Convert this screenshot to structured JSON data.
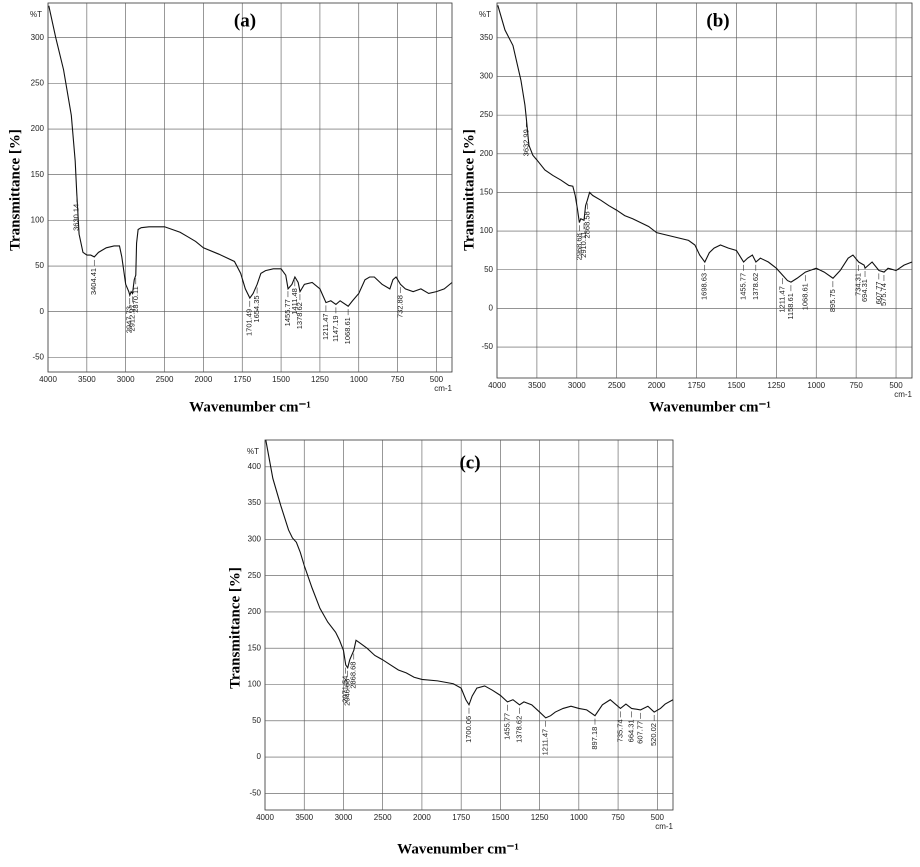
{
  "chart_data": [
    {
      "type": "line",
      "title": "(a)",
      "x_label": "Wavenumber cm⁻¹",
      "y_label": "Transmittance [%]",
      "y_unit": "%T",
      "x_unit": "cm-1",
      "xlim": [
        4000,
        400
      ],
      "ylim": [
        -66,
        338
      ],
      "xticks": [
        4000,
        3500,
        3000,
        2500,
        2000,
        1750,
        1500,
        1250,
        1000,
        750,
        500
      ],
      "yticks": [
        -50,
        0,
        50,
        100,
        150,
        200,
        250,
        300
      ],
      "grid": true,
      "color": "#111111",
      "x": [
        3990,
        3900,
        3800,
        3700,
        3650,
        3630,
        3600,
        3550,
        3500,
        3450,
        3404,
        3350,
        3250,
        3150,
        3080,
        3050,
        3000,
        2960,
        2947,
        2930,
        2912,
        2890,
        2870,
        2860,
        2840,
        2800,
        2700,
        2600,
        2500,
        2400,
        2300,
        2200,
        2100,
        2000,
        1900,
        1800,
        1760,
        1730,
        1701,
        1680,
        1654,
        1630,
        1600,
        1550,
        1500,
        1470,
        1455,
        1430,
        1411,
        1390,
        1378,
        1350,
        1300,
        1250,
        1211,
        1180,
        1147,
        1120,
        1068,
        1040,
        1000,
        960,
        930,
        900,
        850,
        800,
        780,
        760,
        732,
        700,
        650,
        600,
        550,
        500,
        450,
        400
      ],
      "values": [
        335,
        300,
        265,
        215,
        165,
        130,
        85,
        65,
        62,
        62,
        60,
        65,
        70,
        72,
        72,
        60,
        30,
        22,
        18,
        22,
        20,
        35,
        40,
        75,
        90,
        92,
        93,
        93,
        93,
        90,
        87,
        82,
        77,
        70,
        63,
        55,
        42,
        25,
        15,
        20,
        30,
        42,
        45,
        47,
        47,
        40,
        25,
        30,
        38,
        32,
        22,
        30,
        32,
        25,
        10,
        12,
        8,
        12,
        6,
        12,
        20,
        35,
        38,
        38,
        30,
        25,
        35,
        38,
        30,
        25,
        22,
        25,
        20,
        22,
        25,
        32
      ],
      "peaks": [
        3630.14,
        3404.41,
        2947.73,
        2912.97,
        2870.11,
        1701.49,
        1654.35,
        1455.77,
        1411.48,
        1378.62,
        1211.47,
        1147.19,
        1068.61,
        732.88
      ]
    },
    {
      "type": "line",
      "title": "(b)",
      "x_label": "Wavenumber cm⁻¹",
      "y_label": "Transmittance [%]",
      "y_unit": "%T",
      "x_unit": "cm-1",
      "xlim": [
        4000,
        400
      ],
      "ylim": [
        -90,
        395
      ],
      "xticks": [
        4000,
        3500,
        3000,
        2500,
        2000,
        1750,
        1500,
        1250,
        1000,
        750,
        500
      ],
      "yticks": [
        -50,
        0,
        50,
        100,
        150,
        200,
        250,
        300,
        350
      ],
      "grid": true,
      "color": "#111111",
      "x": [
        3990,
        3900,
        3800,
        3700,
        3650,
        3632,
        3600,
        3550,
        3500,
        3400,
        3300,
        3200,
        3100,
        3050,
        3020,
        2990,
        2968,
        2950,
        2910,
        2890,
        2868,
        2840,
        2800,
        2700,
        2600,
        2500,
        2400,
        2300,
        2200,
        2100,
        2000,
        1900,
        1800,
        1760,
        1730,
        1698,
        1670,
        1640,
        1600,
        1550,
        1500,
        1470,
        1455,
        1430,
        1400,
        1378,
        1350,
        1300,
        1250,
        1211,
        1180,
        1158,
        1120,
        1068,
        1040,
        1000,
        950,
        895,
        850,
        800,
        770,
        734,
        700,
        694,
        650,
        607,
        575,
        550,
        500,
        450,
        400
      ],
      "values": [
        392,
        360,
        340,
        295,
        263,
        245,
        211,
        198,
        192,
        179,
        172,
        166,
        159,
        158,
        146,
        127,
        111,
        116,
        114,
        133,
        140,
        150,
        146,
        140,
        133,
        127,
        120,
        116,
        111,
        106,
        98,
        93,
        88,
        82,
        69,
        60,
        72,
        78,
        82,
        78,
        75,
        65,
        60,
        65,
        69,
        60,
        65,
        60,
        52,
        43,
        36,
        34,
        39,
        47,
        49,
        52,
        47,
        39,
        49,
        65,
        69,
        60,
        56,
        52,
        60,
        49,
        47,
        52,
        49,
        56,
        60
      ],
      "peaks": [
        3632.99,
        2968.68,
        2910.11,
        2868.58,
        1698.63,
        1455.77,
        1378.62,
        1211.47,
        1158.61,
        1068.61,
        895.75,
        734.31,
        694.31,
        607.77,
        575.74
      ]
    },
    {
      "type": "line",
      "title": "(c)",
      "x_label": "Wavenumber cm⁻¹",
      "y_label": "Transmittance [%]",
      "y_unit": "%T",
      "x_unit": "cm-1",
      "xlim": [
        4000,
        400
      ],
      "ylim": [
        -73,
        437
      ],
      "xticks": [
        4000,
        3500,
        3000,
        2500,
        2000,
        1750,
        1500,
        1250,
        1000,
        750,
        500
      ],
      "yticks": [
        -50,
        0,
        50,
        100,
        150,
        200,
        250,
        300,
        350,
        400
      ],
      "grid": true,
      "color": "#111111",
      "x": [
        3990,
        3900,
        3800,
        3700,
        3650,
        3600,
        3550,
        3500,
        3400,
        3300,
        3200,
        3100,
        3050,
        3000,
        2971,
        2946,
        2920,
        2868,
        2840,
        2800,
        2700,
        2600,
        2500,
        2400,
        2300,
        2200,
        2100,
        2000,
        1900,
        1800,
        1750,
        1720,
        1700,
        1680,
        1650,
        1600,
        1550,
        1500,
        1455,
        1420,
        1378,
        1350,
        1300,
        1250,
        1211,
        1180,
        1150,
        1100,
        1050,
        1000,
        950,
        897,
        850,
        800,
        735,
        700,
        664,
        607,
        560,
        520,
        480,
        450,
        400
      ],
      "values": [
        437,
        384,
        347,
        313,
        302,
        296,
        282,
        264,
        233,
        205,
        186,
        172,
        161,
        147,
        127,
        123,
        134,
        147,
        161,
        158,
        150,
        140,
        134,
        127,
        120,
        116,
        110,
        107,
        105,
        101,
        95,
        79,
        72,
        84,
        95,
        98,
        92,
        85,
        76,
        79,
        72,
        76,
        72,
        62,
        54,
        57,
        62,
        67,
        70,
        67,
        65,
        57,
        72,
        79,
        67,
        73,
        67,
        65,
        70,
        62,
        67,
        73,
        79
      ],
      "peaks": [
        2971.54,
        2946.68,
        2868.68,
        1700.06,
        1455.77,
        1378.62,
        1211.47,
        897.18,
        735.74,
        664.31,
        607.77,
        520.02
      ]
    }
  ]
}
